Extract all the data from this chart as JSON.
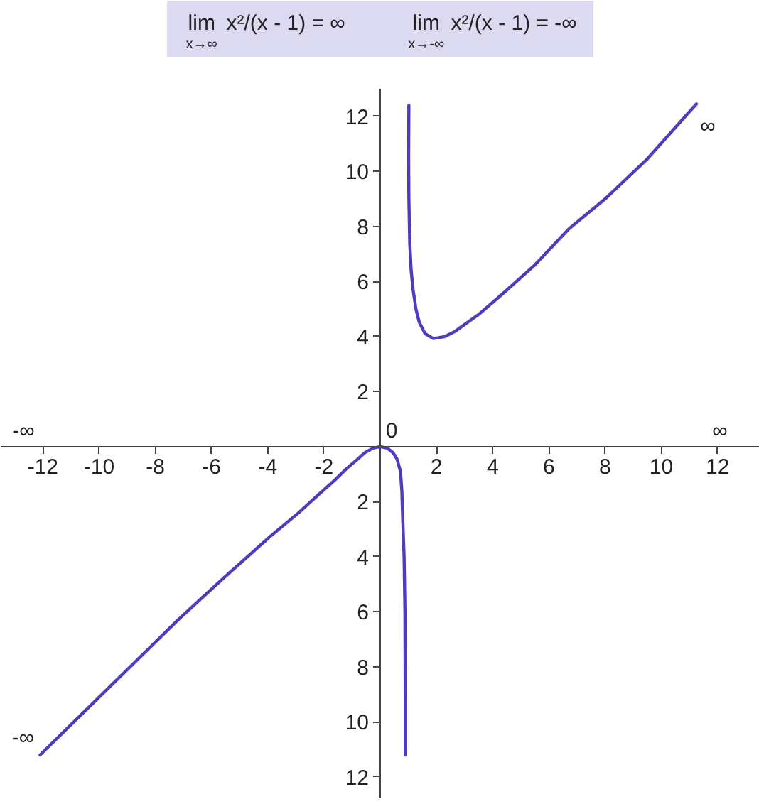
{
  "chart_data": {
    "type": "line",
    "title": "lim$_{x→∞}$ x²/(x - 1) = ∞",
    "subtitle": "lim$_{x→-∞}$ x²/(x - 1) = -∞",
    "series": [
      {
        "color": "#4b3dbd",
        "x": [
          -12.1,
          -10,
          -8.5,
          -7.2,
          -5.6,
          -3.9,
          -2.9,
          -2.2,
          -1.6,
          -1.2,
          -0.8,
          -0.55,
          -0.25,
          0,
          0.25,
          0.46,
          0.6,
          0.72,
          0.77,
          0.8,
          0.85,
          0.88,
          0.89,
          0.89
        ],
        "values": [
          -11.2,
          -9.1,
          -7.6,
          -6.3,
          -4.8,
          -3.25,
          -2.4,
          -1.75,
          -1.2,
          -0.8,
          -0.45,
          -0.22,
          -0.05,
          0,
          -0.05,
          -0.22,
          -0.45,
          -0.9,
          -1.6,
          -2.6,
          -4,
          -6,
          -9,
          -11.2
        ]
      },
      {
        "color": "#4b3dbd",
        "x": [
          1.02,
          1.01,
          1.02,
          1.05,
          1.1,
          1.17,
          1.27,
          1.39,
          1.6,
          1.89,
          2.3,
          2.65,
          3.5,
          4.33,
          5.5,
          6.7,
          8.0,
          9.5,
          11.25
        ],
        "values": [
          12.4,
          10.5,
          9,
          7.4,
          6.4,
          5.7,
          5.0,
          4.52,
          4.1,
          3.93,
          4.0,
          4.18,
          4.8,
          5.53,
          6.6,
          7.9,
          9.0,
          10.45,
          12.45
        ]
      }
    ],
    "xlim": [
      -13.5,
      13.5
    ],
    "ylim": [
      -12.8,
      13
    ],
    "xticks": [
      -12,
      -10,
      -8,
      -6,
      -4,
      -2,
      2,
      4,
      6,
      8,
      10,
      12
    ],
    "yticks": [
      {
        "value": -12,
        "label": "12"
      },
      {
        "value": -10,
        "label": "10"
      },
      {
        "value": -8,
        "label": "8"
      },
      {
        "value": -6,
        "label": "6"
      },
      {
        "value": -4,
        "label": "4"
      },
      {
        "value": -2,
        "label": "2"
      },
      2,
      4,
      6,
      8,
      10,
      12
    ],
    "annotations": [
      {
        "text": "0",
        "x": 0,
        "y": 0
      },
      "-∞",
      "∞",
      "∞",
      "-∞"
    ]
  }
}
